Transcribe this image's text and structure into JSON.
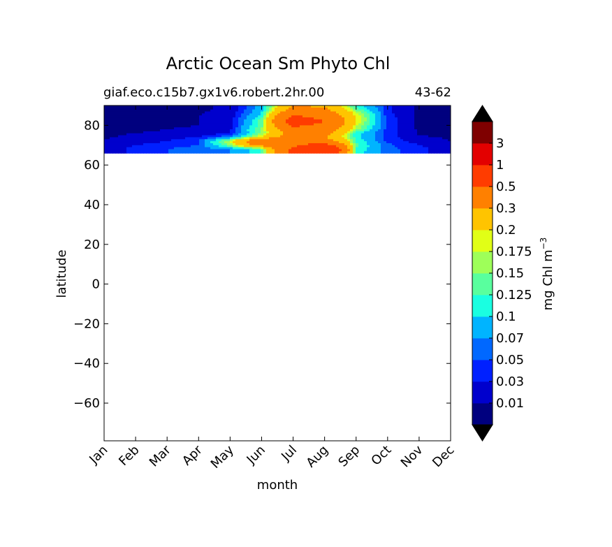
{
  "chart_data": {
    "type": "heatmap",
    "title": "Arctic Ocean Sm Phyto Chl",
    "subtitle_left": "giaf.eco.c15b7.gx1v6.robert.2hr.00",
    "subtitle_right": "43-62",
    "xlabel": "month",
    "ylabel": "latitude",
    "x_categories": [
      "Jan",
      "Feb",
      "Mar",
      "Apr",
      "May",
      "Jun",
      "Jul",
      "Aug",
      "Sep",
      "Oct",
      "Nov",
      "Dec"
    ],
    "ylim": [
      -79,
      90
    ],
    "yticks": [
      -60,
      -40,
      -20,
      0,
      20,
      40,
      60,
      80
    ],
    "ytick_labels": [
      "−60",
      "−40",
      "−20",
      "0",
      "20",
      "40",
      "60",
      "80"
    ],
    "data_lat_range": [
      66,
      90
    ],
    "colorbar": {
      "label": "mg Chl m",
      "label_exponent": "−3",
      "extend": "both",
      "levels": [
        "0.01",
        "0.03",
        "0.05",
        "0.07",
        "0.1",
        "0.125",
        "0.15",
        "0.175",
        "0.2",
        "0.3",
        "0.5",
        "1",
        "3"
      ],
      "colors": [
        "#00007f",
        "#0000cd",
        "#0020ff",
        "#0068ff",
        "#00b4ff",
        "#1affe1",
        "#59ff9e",
        "#9eff59",
        "#e1ff16",
        "#ffc400",
        "#ff8000",
        "#ff3c00",
        "#e30000",
        "#7f0000"
      ],
      "under_color": "#000000",
      "over_color": "#000000"
    },
    "fields": {
      "times": [
        0,
        1,
        2,
        3,
        4,
        5,
        6,
        7,
        8,
        9,
        10,
        11
      ],
      "lats": [
        66,
        68,
        70,
        72,
        74,
        76,
        78,
        80,
        82,
        84,
        86,
        88,
        90
      ],
      "values": [
        [
          0.02,
          0.035,
          0.05,
          0.06,
          0.07,
          0.12,
          0.6,
          0.85,
          0.11,
          0.06,
          0.035,
          0.02
        ],
        [
          0.02,
          0.035,
          0.05,
          0.06,
          0.07,
          0.12,
          0.55,
          0.9,
          0.12,
          0.06,
          0.035,
          0.02
        ],
        [
          0.015,
          0.03,
          0.04,
          0.05,
          0.15,
          0.35,
          0.45,
          0.6,
          0.13,
          0.055,
          0.03,
          0.015
        ],
        [
          0.012,
          0.02,
          0.03,
          0.05,
          0.18,
          0.45,
          0.45,
          0.4,
          0.12,
          0.045,
          0.02,
          0.01
        ],
        [
          0.008,
          0.015,
          0.02,
          0.03,
          0.07,
          0.2,
          0.4,
          0.3,
          0.11,
          0.04,
          0.012,
          0.008
        ],
        [
          0.006,
          0.01,
          0.012,
          0.015,
          0.03,
          0.15,
          0.35,
          0.35,
          0.11,
          0.04,
          0.008,
          0.006
        ],
        [
          0.005,
          0.008,
          0.01,
          0.012,
          0.025,
          0.16,
          0.4,
          0.4,
          0.16,
          0.04,
          0.006,
          0.005
        ],
        [
          0.005,
          0.007,
          0.008,
          0.01,
          0.022,
          0.14,
          0.55,
          0.45,
          0.18,
          0.04,
          0.006,
          0.005
        ],
        [
          0.005,
          0.007,
          0.008,
          0.01,
          0.02,
          0.14,
          0.6,
          0.5,
          0.2,
          0.04,
          0.006,
          0.005
        ],
        [
          0.005,
          0.006,
          0.008,
          0.01,
          0.018,
          0.12,
          0.55,
          0.45,
          0.2,
          0.04,
          0.006,
          0.005
        ],
        [
          0.005,
          0.006,
          0.007,
          0.009,
          0.015,
          0.1,
          0.45,
          0.4,
          0.18,
          0.035,
          0.006,
          0.005
        ],
        [
          0.005,
          0.006,
          0.007,
          0.008,
          0.012,
          0.09,
          0.35,
          0.32,
          0.14,
          0.035,
          0.006,
          0.005
        ],
        [
          0.005,
          0.006,
          0.007,
          0.008,
          0.012,
          0.08,
          0.3,
          0.28,
          0.12,
          0.035,
          0.006,
          0.005
        ]
      ]
    }
  }
}
